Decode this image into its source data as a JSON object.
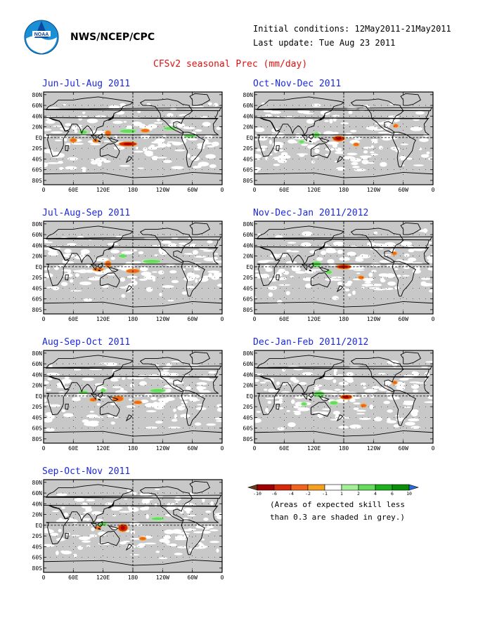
{
  "header": {
    "org": "NWS/NCEP/CPC",
    "initial_conditions": "Initial conditions: 12May2011-21May2011",
    "last_update": "Last update: Tue Aug 23 2011",
    "title": "CFSv2 seasonal Prec (mm/day)"
  },
  "colors": {
    "skill_grey": "#c8c8c8",
    "map_white": "#ffffff",
    "title_red": "#e01010",
    "panel_title_blue": "#1a28e0",
    "legend": [
      "#6b3a1e",
      "#a00000",
      "#d42a0a",
      "#f0641e",
      "#f5a020",
      "#ffffff",
      "#a6ef9a",
      "#66dc5e",
      "#1cb01c",
      "#0a8e0a",
      "#2a6ad8"
    ]
  },
  "logo": {
    "icon": "noaa-logo-icon"
  },
  "chart_data": {
    "type": "heatmap",
    "variable": "CFSv2 seasonal Prec (mm/day)",
    "x_ticks": [
      "0",
      "60E",
      "120E",
      "180",
      "120W",
      "60W",
      "0"
    ],
    "y_ticks": [
      "80N",
      "60N",
      "40N",
      "20N",
      "EQ",
      "20S",
      "40S",
      "60S",
      "80S"
    ],
    "panels": [
      {
        "title": "Jun-Jul-Aug 2011",
        "features": [
          {
            "type": "dry",
            "level": 2,
            "lon": 170,
            "lat": -12,
            "lon_span": 35,
            "lat_span": 7
          },
          {
            "type": "dry",
            "level": 1,
            "lon": 130,
            "lat": 8,
            "lon_span": 10,
            "lat_span": 9
          },
          {
            "type": "dry",
            "level": 1,
            "lon": 60,
            "lat": -5,
            "lon_span": 12,
            "lat_span": 6
          },
          {
            "type": "dry",
            "level": 1,
            "lon": 105,
            "lat": -6,
            "lon_span": 10,
            "lat_span": 5
          },
          {
            "type": "dry",
            "level": 1,
            "lon": 205,
            "lat": 13,
            "lon_span": 15,
            "lat_span": 5
          },
          {
            "type": "wet",
            "level": 1,
            "lon": 170,
            "lat": 12,
            "lon_span": 32,
            "lat_span": 6
          },
          {
            "type": "wet",
            "level": 1,
            "lon": 255,
            "lat": 17,
            "lon_span": 25,
            "lat_span": 5
          },
          {
            "type": "wet",
            "level": 1,
            "lon": 80,
            "lat": 10,
            "lon_span": 15,
            "lat_span": 6
          },
          {
            "type": "wet",
            "level": 1,
            "lon": 295,
            "lat": 3,
            "lon_span": 22,
            "lat_span": 5
          }
        ]
      },
      {
        "title": "Jul-Aug-Sep 2011",
        "features": [
          {
            "type": "dry",
            "level": 1,
            "lon": 130,
            "lat": 5,
            "lon_span": 10,
            "lat_span": 11
          },
          {
            "type": "dry",
            "level": 1,
            "lon": 180,
            "lat": -8,
            "lon_span": 25,
            "lat_span": 6
          },
          {
            "type": "dry",
            "level": 1,
            "lon": 110,
            "lat": -5,
            "lon_span": 20,
            "lat_span": 5
          },
          {
            "type": "wet",
            "level": 1,
            "lon": 218,
            "lat": 10,
            "lon_span": 35,
            "lat_span": 6
          },
          {
            "type": "wet",
            "level": 1,
            "lon": 160,
            "lat": 20,
            "lon_span": 12,
            "lat_span": 6
          }
        ]
      },
      {
        "title": "Aug-Sep-Oct 2011",
        "features": [
          {
            "type": "dry",
            "level": 1,
            "lon": 150,
            "lat": -5,
            "lon_span": 20,
            "lat_span": 9
          },
          {
            "type": "dry",
            "level": 1,
            "lon": 190,
            "lat": -12,
            "lon_span": 15,
            "lat_span": 5
          },
          {
            "type": "dry",
            "level": 1,
            "lon": 100,
            "lat": -7,
            "lon_span": 12,
            "lat_span": 5
          },
          {
            "type": "wet",
            "level": 1,
            "lon": 80,
            "lat": 7,
            "lon_span": 18,
            "lat_span": 5
          },
          {
            "type": "wet",
            "level": 1,
            "lon": 230,
            "lat": 10,
            "lon_span": 30,
            "lat_span": 6
          },
          {
            "type": "wet",
            "level": 1,
            "lon": 120,
            "lat": 10,
            "lon_span": 10,
            "lat_span": 6
          }
        ]
      },
      {
        "title": "Sep-Oct-Nov 2011",
        "features": [
          {
            "type": "dry",
            "level": 2,
            "lon": 160,
            "lat": -5,
            "lon_span": 18,
            "lat_span": 13
          },
          {
            "type": "dry",
            "level": 1,
            "lon": 200,
            "lat": -25,
            "lon_span": 12,
            "lat_span": 5
          },
          {
            "type": "dry",
            "level": 1,
            "lon": 110,
            "lat": -5,
            "lon_span": 10,
            "lat_span": 5
          },
          {
            "type": "wet",
            "level": 1,
            "lon": 120,
            "lat": 2,
            "lon_span": 15,
            "lat_span": 6
          },
          {
            "type": "wet",
            "level": 1,
            "lon": 230,
            "lat": 12,
            "lon_span": 25,
            "lat_span": 5
          }
        ]
      },
      {
        "title": "Oct-Nov-Dec 2011",
        "features": [
          {
            "type": "dry",
            "level": 2,
            "lon": 170,
            "lat": -2,
            "lon_span": 22,
            "lat_span": 9
          },
          {
            "type": "dry",
            "level": 1,
            "lon": 205,
            "lat": -13,
            "lon_span": 10,
            "lat_span": 5
          },
          {
            "type": "dry",
            "level": 1,
            "lon": 285,
            "lat": 22,
            "lon_span": 8,
            "lat_span": 5
          },
          {
            "type": "wet",
            "level": 1,
            "lon": 125,
            "lat": 5,
            "lon_span": 12,
            "lat_span": 9
          },
          {
            "type": "wet",
            "level": 1,
            "lon": 95,
            "lat": -8,
            "lon_span": 10,
            "lat_span": 5
          }
        ]
      },
      {
        "title": "Nov-Dec-Jan 2011/2012",
        "features": [
          {
            "type": "dry",
            "level": 2,
            "lon": 180,
            "lat": 0,
            "lon_span": 28,
            "lat_span": 7
          },
          {
            "type": "dry",
            "level": 1,
            "lon": 215,
            "lat": -20,
            "lon_span": 10,
            "lat_span": 5
          },
          {
            "type": "dry",
            "level": 1,
            "lon": 282,
            "lat": 25,
            "lon_span": 8,
            "lat_span": 5
          },
          {
            "type": "wet",
            "level": 1,
            "lon": 125,
            "lat": 5,
            "lon_span": 18,
            "lat_span": 10
          },
          {
            "type": "wet",
            "level": 1,
            "lon": 150,
            "lat": -10,
            "lon_span": 12,
            "lat_span": 6
          }
        ]
      },
      {
        "title": "Dec-Jan-Feb 2011/2012",
        "features": [
          {
            "type": "dry",
            "level": 2,
            "lon": 185,
            "lat": -2,
            "lon_span": 22,
            "lat_span": 7
          },
          {
            "type": "dry",
            "level": 1,
            "lon": 220,
            "lat": -18,
            "lon_span": 10,
            "lat_span": 5
          },
          {
            "type": "dry",
            "level": 1,
            "lon": 283,
            "lat": 25,
            "lon_span": 8,
            "lat_span": 5
          },
          {
            "type": "wet",
            "level": 1,
            "lon": 130,
            "lat": 3,
            "lon_span": 20,
            "lat_span": 10
          },
          {
            "type": "wet",
            "level": 1,
            "lon": 160,
            "lat": -13,
            "lon_span": 15,
            "lat_span": 6
          },
          {
            "type": "wet",
            "level": 1,
            "lon": 100,
            "lat": -15,
            "lon_span": 10,
            "lat_span": 5
          }
        ]
      }
    ],
    "legend": {
      "boundaries": [
        "-10",
        "-6",
        "-4",
        "-2",
        "-1",
        "1",
        "2",
        "4",
        "6",
        "10"
      ],
      "note_line1": "(Areas of expected skill less",
      "note_line2": "than 0.3 are shaded in grey.)"
    }
  }
}
